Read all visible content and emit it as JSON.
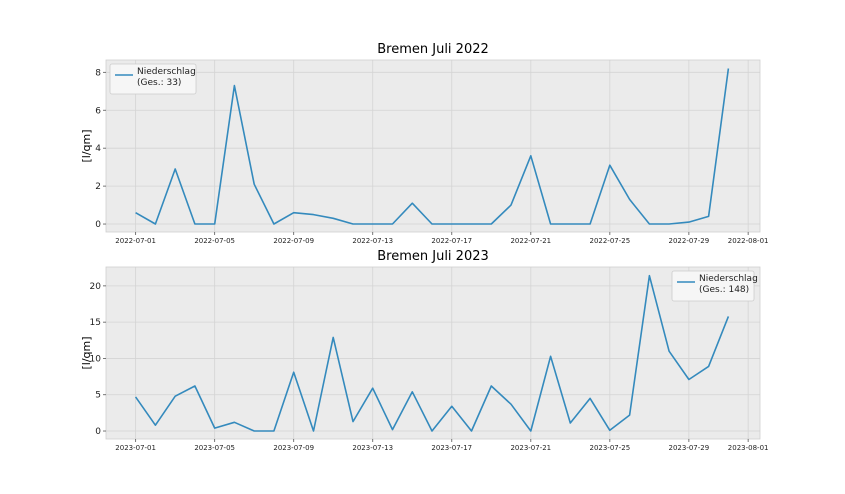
{
  "chart_data": [
    {
      "type": "line",
      "title": "Bremen Juli 2022",
      "ylabel": "[l/qm]",
      "xlabel": "",
      "x_start": "2022-07-01",
      "x": [
        "2022-07-01",
        "2022-07-02",
        "2022-07-03",
        "2022-07-04",
        "2022-07-05",
        "2022-07-06",
        "2022-07-07",
        "2022-07-08",
        "2022-07-09",
        "2022-07-10",
        "2022-07-11",
        "2022-07-12",
        "2022-07-13",
        "2022-07-14",
        "2022-07-15",
        "2022-07-16",
        "2022-07-17",
        "2022-07-18",
        "2022-07-19",
        "2022-07-20",
        "2022-07-21",
        "2022-07-22",
        "2022-07-23",
        "2022-07-24",
        "2022-07-25",
        "2022-07-26",
        "2022-07-27",
        "2022-07-28",
        "2022-07-29",
        "2022-07-30",
        "2022-07-31"
      ],
      "xticks": [
        "2022-07-01",
        "2022-07-05",
        "2022-07-09",
        "2022-07-13",
        "2022-07-17",
        "2022-07-21",
        "2022-07-25",
        "2022-07-29",
        "2022-08-01"
      ],
      "yticks": [
        "0",
        "2",
        "4",
        "6",
        "8"
      ],
      "ylim": [
        -0.42,
        8.65
      ],
      "grid": true,
      "legend_position": "top-left",
      "color": "#348ABD",
      "series": [
        {
          "name": "Niederschlag\n(Ges.: 33)",
          "legend_lines": [
            "Niederschlag",
            "(Ges.: 33)"
          ],
          "values": [
            0.6,
            0.0,
            2.9,
            0.0,
            0.0,
            7.3,
            2.1,
            0.0,
            0.6,
            0.5,
            0.3,
            0.0,
            0.0,
            0.0,
            1.1,
            0.0,
            0.0,
            0.0,
            0.0,
            1.0,
            3.6,
            0.0,
            0.0,
            0.0,
            3.1,
            1.3,
            0.0,
            0.0,
            0.1,
            0.4,
            8.2
          ]
        }
      ]
    },
    {
      "type": "line",
      "title": "Bremen Juli 2023",
      "ylabel": "[l/qm]",
      "xlabel": "",
      "x_start": "2023-07-01",
      "x": [
        "2023-07-01",
        "2023-07-02",
        "2023-07-03",
        "2023-07-04",
        "2023-07-05",
        "2023-07-06",
        "2023-07-07",
        "2023-07-08",
        "2023-07-09",
        "2023-07-10",
        "2023-07-11",
        "2023-07-12",
        "2023-07-13",
        "2023-07-14",
        "2023-07-15",
        "2023-07-16",
        "2023-07-17",
        "2023-07-18",
        "2023-07-19",
        "2023-07-20",
        "2023-07-21",
        "2023-07-22",
        "2023-07-23",
        "2023-07-24",
        "2023-07-25",
        "2023-07-26",
        "2023-07-27",
        "2023-07-28",
        "2023-07-29",
        "2023-07-30",
        "2023-07-31"
      ],
      "xticks": [
        "2023-07-01",
        "2023-07-05",
        "2023-07-09",
        "2023-07-13",
        "2023-07-17",
        "2023-07-21",
        "2023-07-25",
        "2023-07-29",
        "2023-08-01"
      ],
      "yticks": [
        "0",
        "5",
        "10",
        "15",
        "20"
      ],
      "ylim": [
        -1.1,
        22.6
      ],
      "grid": true,
      "legend_position": "top-right",
      "color": "#348ABD",
      "series": [
        {
          "name": "Niederschlag\n(Ges.: 148)",
          "legend_lines": [
            "Niederschlag",
            "(Ges.: 148)"
          ],
          "values": [
            4.7,
            0.8,
            4.8,
            6.2,
            0.4,
            1.2,
            0.0,
            0.0,
            8.1,
            0.0,
            12.9,
            1.3,
            5.9,
            0.2,
            5.4,
            0.0,
            3.4,
            0.0,
            6.2,
            3.7,
            0.0,
            10.3,
            1.1,
            4.5,
            0.1,
            2.2,
            21.4,
            11.0,
            7.1,
            8.9,
            15.8
          ]
        }
      ]
    }
  ]
}
